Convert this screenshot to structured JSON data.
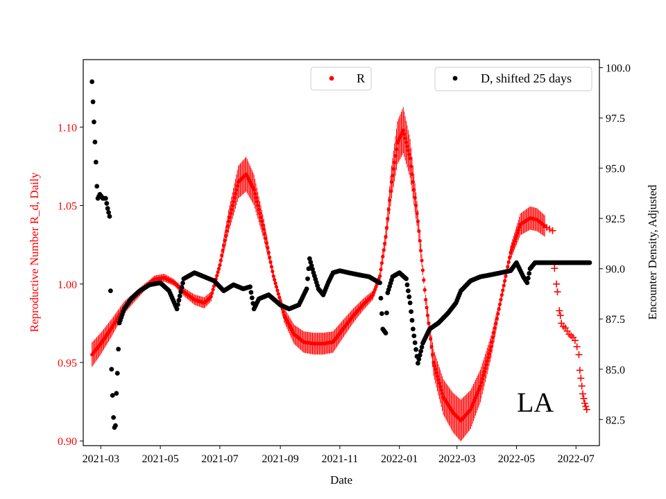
{
  "chart_data": {
    "type": "scatter",
    "annotation": "LA",
    "xlabel": "Date",
    "x_ticks": [
      "2021-03",
      "2021-05",
      "2021-07",
      "2021-09",
      "2021-11",
      "2022-01",
      "2022-03",
      "2022-05",
      "2022-07"
    ],
    "x_range": [
      "2021-02-11",
      "2022-07-25"
    ],
    "left_axis": {
      "label": "Reproductive Number R_d, Daily",
      "color": "#ff0000",
      "ylim": [
        0.897,
        1.143
      ],
      "ticks": [
        "0.90",
        "0.95",
        "1.00",
        "1.05",
        "1.10"
      ]
    },
    "right_axis": {
      "label": "Encounter Density, Adjusted",
      "color": "#000000",
      "ylim": [
        81.2,
        100.4
      ],
      "ticks": [
        "82.5",
        "85.0",
        "87.5",
        "90.0",
        "92.5",
        "95.0",
        "97.5",
        "100.0"
      ]
    },
    "legend": {
      "r_label": "R",
      "d_label": "D, shifted 25 days"
    },
    "series": [
      {
        "name": "R",
        "axis": "left",
        "color": "#ff0000",
        "marker": "dot",
        "points": [
          [
            "2021-02-20",
            0.955
          ],
          [
            "2021-03-01",
            0.962
          ],
          [
            "2021-03-12",
            0.972
          ],
          [
            "2021-03-25",
            0.985
          ],
          [
            "2021-04-05",
            0.992
          ],
          [
            "2021-04-15",
            0.998
          ],
          [
            "2021-04-25",
            1.003
          ],
          [
            "2021-05-05",
            1.004
          ],
          [
            "2021-05-15",
            1.001
          ],
          [
            "2021-05-25",
            0.995
          ],
          [
            "2021-06-05",
            0.99
          ],
          [
            "2021-06-15",
            0.988
          ],
          [
            "2021-06-22",
            0.992
          ],
          [
            "2021-07-01",
            1.012
          ],
          [
            "2021-07-10",
            1.04
          ],
          [
            "2021-07-20",
            1.065
          ],
          [
            "2021-07-28",
            1.07
          ],
          [
            "2021-08-05",
            1.06
          ],
          [
            "2021-08-15",
            1.035
          ],
          [
            "2021-08-25",
            1.005
          ],
          [
            "2021-09-05",
            0.98
          ],
          [
            "2021-09-15",
            0.968
          ],
          [
            "2021-09-25",
            0.963
          ],
          [
            "2021-10-05",
            0.962
          ],
          [
            "2021-10-15",
            0.962
          ],
          [
            "2021-10-25",
            0.963
          ],
          [
            "2021-11-05",
            0.972
          ],
          [
            "2021-11-15",
            0.98
          ],
          [
            "2021-11-25",
            0.987
          ],
          [
            "2021-12-05",
            0.993
          ],
          [
            "2021-12-12",
            1.005
          ],
          [
            "2021-12-18",
            1.03
          ],
          [
            "2021-12-24",
            1.065
          ],
          [
            "2021-12-30",
            1.09
          ],
          [
            "2022-01-05",
            1.098
          ],
          [
            "2022-01-12",
            1.08
          ],
          [
            "2022-01-20",
            1.04
          ],
          [
            "2022-01-28",
            0.99
          ],
          [
            "2022-02-05",
            0.95
          ],
          [
            "2022-02-15",
            0.928
          ],
          [
            "2022-02-25",
            0.918
          ],
          [
            "2022-03-05",
            0.913
          ],
          [
            "2022-03-15",
            0.92
          ],
          [
            "2022-03-25",
            0.935
          ],
          [
            "2022-04-05",
            0.96
          ],
          [
            "2022-04-15",
            0.99
          ],
          [
            "2022-04-25",
            1.02
          ],
          [
            "2022-05-05",
            1.038
          ],
          [
            "2022-05-15",
            1.042
          ],
          [
            "2022-05-22",
            1.041
          ],
          [
            "2022-05-30",
            1.037
          ]
        ]
      },
      {
        "name": "R projection",
        "axis": "left",
        "color": "#ff0000",
        "marker": "plus",
        "points": [
          [
            "2022-06-01",
            1.036
          ],
          [
            "2022-06-04",
            1.035
          ],
          [
            "2022-06-07",
            1.034
          ],
          [
            "2022-06-09",
            1.01
          ],
          [
            "2022-06-11",
            1.0
          ],
          [
            "2022-06-12",
            0.995
          ],
          [
            "2022-06-14",
            0.983
          ],
          [
            "2022-06-15",
            0.98
          ],
          [
            "2022-06-16",
            0.975
          ],
          [
            "2022-06-18",
            0.973
          ],
          [
            "2022-06-20",
            0.972
          ],
          [
            "2022-06-22",
            0.97
          ],
          [
            "2022-06-24",
            0.968
          ],
          [
            "2022-06-26",
            0.967
          ],
          [
            "2022-06-28",
            0.966
          ],
          [
            "2022-06-30",
            0.964
          ],
          [
            "2022-07-02",
            0.96
          ],
          [
            "2022-07-04",
            0.955
          ],
          [
            "2022-07-05",
            0.945
          ],
          [
            "2022-07-06",
            0.94
          ],
          [
            "2022-07-07",
            0.935
          ],
          [
            "2022-07-08",
            0.93
          ],
          [
            "2022-07-09",
            0.927
          ],
          [
            "2022-07-10",
            0.924
          ],
          [
            "2022-07-11",
            0.922
          ],
          [
            "2022-07-12",
            0.92
          ]
        ]
      },
      {
        "name": "D, shifted 25 days",
        "axis": "right",
        "color": "#000000",
        "marker": "dot",
        "points": [
          [
            "2021-02-20",
            99.3
          ],
          [
            "2021-02-21",
            98.3
          ],
          [
            "2021-02-22",
            97.3
          ],
          [
            "2021-02-23",
            96.3
          ],
          [
            "2021-02-24",
            95.3
          ],
          [
            "2021-02-25",
            94.1
          ],
          [
            "2021-02-26",
            93.5
          ],
          [
            "2021-02-28",
            93.7
          ],
          [
            "2021-03-03",
            93.5
          ],
          [
            "2021-03-06",
            93.5
          ],
          [
            "2021-03-08",
            93.0
          ],
          [
            "2021-03-10",
            92.6
          ],
          [
            "2021-03-11",
            88.9
          ],
          [
            "2021-03-12",
            85.0
          ],
          [
            "2021-03-13",
            83.7
          ],
          [
            "2021-03-14",
            82.6
          ],
          [
            "2021-03-15",
            82.1
          ],
          [
            "2021-03-16",
            82.2
          ],
          [
            "2021-03-17",
            83.8
          ],
          [
            "2021-03-18",
            84.8
          ],
          [
            "2021-03-19",
            86.0
          ],
          [
            "2021-03-20",
            87.3
          ],
          [
            "2021-03-25",
            88.0
          ],
          [
            "2021-04-01",
            88.5
          ],
          [
            "2021-04-10",
            88.9
          ],
          [
            "2021-04-20",
            89.2
          ],
          [
            "2021-05-01",
            89.3
          ],
          [
            "2021-05-10",
            88.9
          ],
          [
            "2021-05-18",
            88.0
          ],
          [
            "2021-05-25",
            89.5
          ],
          [
            "2021-06-05",
            89.8
          ],
          [
            "2021-06-15",
            89.6
          ],
          [
            "2021-06-25",
            89.4
          ],
          [
            "2021-07-05",
            88.9
          ],
          [
            "2021-07-15",
            89.2
          ],
          [
            "2021-07-25",
            89.0
          ],
          [
            "2021-08-01",
            89.1
          ],
          [
            "2021-08-05",
            88.0
          ],
          [
            "2021-08-10",
            88.5
          ],
          [
            "2021-08-20",
            88.7
          ],
          [
            "2021-09-01",
            88.2
          ],
          [
            "2021-09-10",
            88.0
          ],
          [
            "2021-09-20",
            88.2
          ],
          [
            "2021-09-28",
            89.0
          ],
          [
            "2021-10-01",
            90.5
          ],
          [
            "2021-10-05",
            89.8
          ],
          [
            "2021-10-10",
            89.0
          ],
          [
            "2021-10-15",
            88.7
          ],
          [
            "2021-10-20",
            89.3
          ],
          [
            "2021-10-25",
            89.8
          ],
          [
            "2021-11-01",
            89.9
          ],
          [
            "2021-11-10",
            89.8
          ],
          [
            "2021-11-20",
            89.7
          ],
          [
            "2021-12-01",
            89.6
          ],
          [
            "2021-12-08",
            89.4
          ],
          [
            "2021-12-12",
            89.3
          ],
          [
            "2021-12-15",
            87.0
          ],
          [
            "2021-12-18",
            86.8
          ],
          [
            "2021-12-20",
            88.8
          ],
          [
            "2021-12-25",
            89.6
          ],
          [
            "2022-01-01",
            89.8
          ],
          [
            "2022-01-08",
            89.5
          ],
          [
            "2022-01-12",
            88.3
          ],
          [
            "2022-01-15",
            87.0
          ],
          [
            "2022-01-20",
            85.3
          ],
          [
            "2022-01-25",
            86.3
          ],
          [
            "2022-02-01",
            87.0
          ],
          [
            "2022-02-10",
            87.3
          ],
          [
            "2022-02-20",
            87.8
          ],
          [
            "2022-02-28",
            88.3
          ],
          [
            "2022-03-05",
            88.9
          ],
          [
            "2022-03-15",
            89.4
          ],
          [
            "2022-03-25",
            89.6
          ],
          [
            "2022-04-05",
            89.7
          ],
          [
            "2022-04-15",
            89.8
          ],
          [
            "2022-04-25",
            89.9
          ],
          [
            "2022-05-01",
            90.3
          ],
          [
            "2022-05-08",
            89.6
          ],
          [
            "2022-05-12",
            89.3
          ],
          [
            "2022-05-15",
            90.0
          ],
          [
            "2022-05-20",
            90.3
          ],
          [
            "2022-06-01",
            90.3
          ],
          [
            "2022-06-15",
            90.3
          ],
          [
            "2022-07-01",
            90.3
          ],
          [
            "2022-07-15",
            90.3
          ]
        ]
      }
    ]
  }
}
